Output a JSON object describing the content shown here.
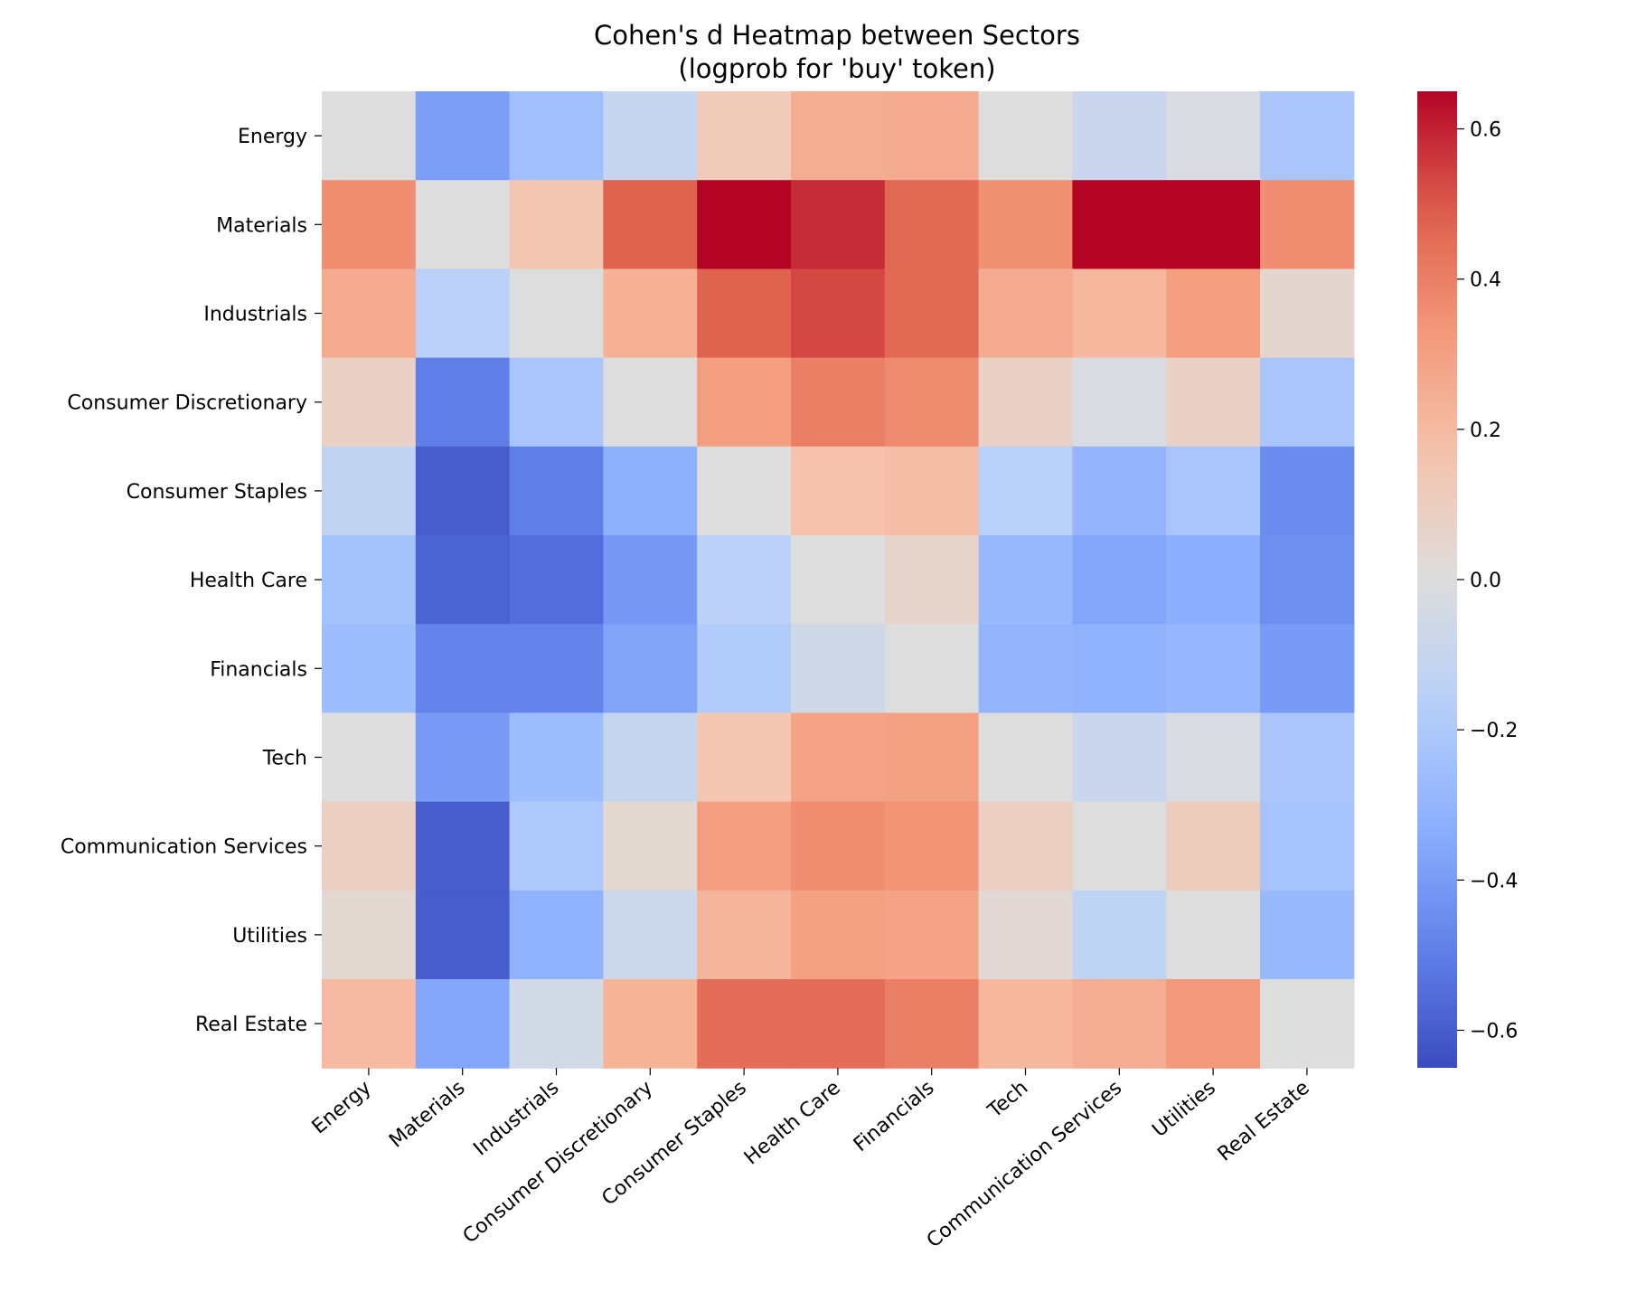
{
  "chart_data": {
    "type": "heatmap",
    "title": "Cohen's d Heatmap between Sectors",
    "subtitle": "(logprob for 'buy' token)",
    "xlabel": "",
    "ylabel": "",
    "row_labels": [
      "Energy",
      "Materials",
      "Industrials",
      "Consumer Discretionary",
      "Consumer Staples",
      "Health Care",
      "Financials",
      "Tech",
      "Communication Services",
      "Utilities",
      "Real Estate"
    ],
    "col_labels": [
      "Energy",
      "Materials",
      "Industrials",
      "Consumer Discretionary",
      "Consumer Staples",
      "Health Care",
      "Financials",
      "Tech",
      "Communication Services",
      "Utilities",
      "Real Estate"
    ],
    "values": [
      [
        0.0,
        -0.39,
        -0.25,
        -0.1,
        0.12,
        0.25,
        0.26,
        0.0,
        -0.09,
        -0.02,
        -0.22
      ],
      [
        0.36,
        0.0,
        0.15,
        0.48,
        0.65,
        0.58,
        0.46,
        0.35,
        0.65,
        0.65,
        0.36
      ],
      [
        0.26,
        -0.15,
        0.0,
        0.24,
        0.48,
        0.53,
        0.46,
        0.26,
        0.21,
        0.31,
        0.05
      ],
      [
        0.08,
        -0.5,
        -0.22,
        0.0,
        0.31,
        0.4,
        0.37,
        0.08,
        -0.02,
        0.08,
        -0.22
      ],
      [
        -0.12,
        -0.6,
        -0.5,
        -0.32,
        0.0,
        0.17,
        0.19,
        -0.16,
        -0.3,
        -0.22,
        -0.45
      ],
      [
        -0.24,
        -0.58,
        -0.55,
        -0.41,
        -0.15,
        0.0,
        0.06,
        -0.28,
        -0.36,
        -0.33,
        -0.44
      ],
      [
        -0.26,
        -0.48,
        -0.48,
        -0.37,
        -0.19,
        -0.06,
        0.0,
        -0.3,
        -0.31,
        -0.29,
        -0.4
      ],
      [
        0.0,
        -0.4,
        -0.26,
        -0.1,
        0.15,
        0.29,
        0.3,
        0.0,
        -0.09,
        -0.02,
        -0.22
      ],
      [
        0.09,
        -0.6,
        -0.2,
        0.04,
        0.31,
        0.36,
        0.34,
        0.09,
        0.0,
        0.11,
        -0.23
      ],
      [
        0.04,
        -0.6,
        -0.31,
        -0.08,
        0.22,
        0.3,
        0.29,
        0.03,
        -0.13,
        0.0,
        -0.28
      ],
      [
        0.2,
        -0.36,
        -0.05,
        0.23,
        0.45,
        0.45,
        0.4,
        0.21,
        0.25,
        0.33,
        0.0
      ]
    ],
    "colormap": "coolwarm",
    "vmin": -0.65,
    "vmax": 0.65,
    "colorbar": {
      "ticks": [
        -0.6,
        -0.4,
        -0.2,
        0.0,
        0.2,
        0.4,
        0.6
      ],
      "tick_labels": [
        "−0.6",
        "−0.4",
        "−0.2",
        "0.0",
        "0.2",
        "0.4",
        "0.6"
      ]
    }
  }
}
